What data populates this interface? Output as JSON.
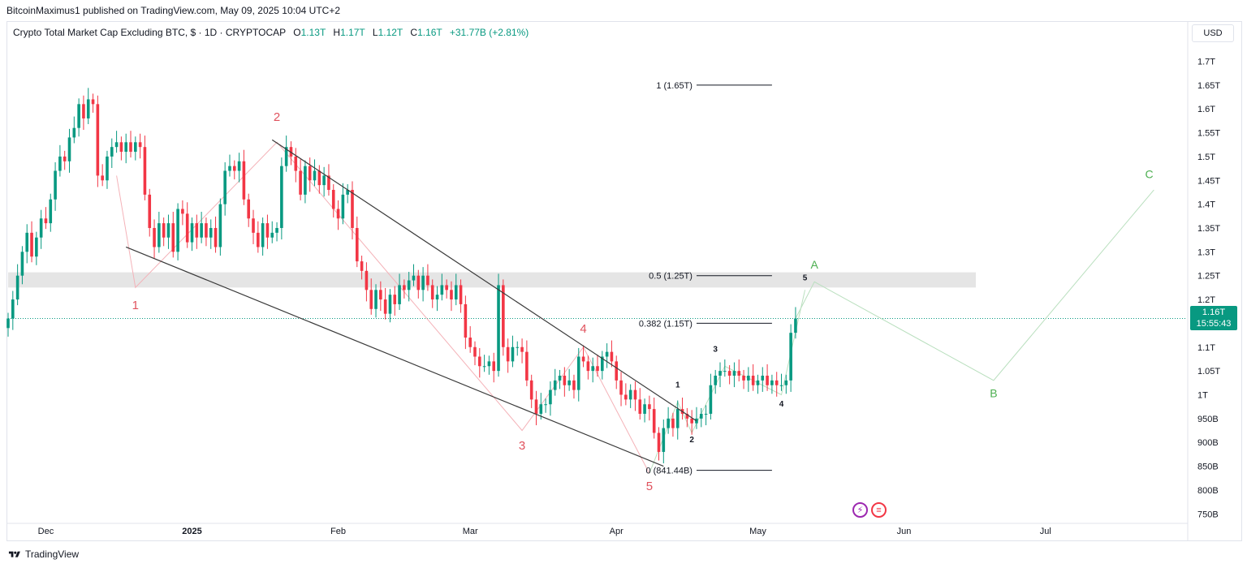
{
  "header": {
    "publisher": "BitcoinMaximus1 published on TradingView.com, May 09, 2025 10:04 UTC+2"
  },
  "legend": {
    "symbol": "Crypto Total Market Cap Excluding BTC, $ · 1D · CRYPTOCAP",
    "open_label": "O",
    "open": "1.13T",
    "high_label": "H",
    "high": "1.17T",
    "low_label": "L",
    "low": "1.12T",
    "close_label": "C",
    "close": "1.16T",
    "change": "+31.77B (+2.81%)"
  },
  "currency": "USD",
  "price_badge": {
    "price": "1.16T",
    "countdown": "15:55:43"
  },
  "footer": {
    "brand": "TradingView"
  },
  "colors": {
    "up": "#089981",
    "down": "#f23645",
    "wave_red": "#e0525d",
    "wave_green": "#4caf50"
  },
  "chart_data": {
    "type": "candlestick",
    "y_unit": "USD (trillions)",
    "ylim": [
      0.73,
      1.74
    ],
    "y_ticks": [
      {
        "v": 1.7,
        "label": "1.7T"
      },
      {
        "v": 1.65,
        "label": "1.65T"
      },
      {
        "v": 1.6,
        "label": "1.6T"
      },
      {
        "v": 1.55,
        "label": "1.55T"
      },
      {
        "v": 1.5,
        "label": "1.5T"
      },
      {
        "v": 1.45,
        "label": "1.45T"
      },
      {
        "v": 1.4,
        "label": "1.4T"
      },
      {
        "v": 1.35,
        "label": "1.35T"
      },
      {
        "v": 1.3,
        "label": "1.3T"
      },
      {
        "v": 1.25,
        "label": "1.25T"
      },
      {
        "v": 1.2,
        "label": "1.2T"
      },
      {
        "v": 1.1,
        "label": "1.1T"
      },
      {
        "v": 1.05,
        "label": "1.05T"
      },
      {
        "v": 1.0,
        "label": "1T"
      },
      {
        "v": 0.95,
        "label": "950B"
      },
      {
        "v": 0.9,
        "label": "900B"
      },
      {
        "v": 0.85,
        "label": "850B"
      },
      {
        "v": 0.8,
        "label": "800B"
      },
      {
        "v": 0.75,
        "label": "750B"
      }
    ],
    "x_ticks": [
      {
        "date": "2024-12-01",
        "label": "Dec",
        "bold": false
      },
      {
        "date": "2025-01-01",
        "label": "2025",
        "bold": true
      },
      {
        "date": "2025-02-01",
        "label": "Feb",
        "bold": false
      },
      {
        "date": "2025-03-01",
        "label": "Mar",
        "bold": false
      },
      {
        "date": "2025-04-01",
        "label": "Apr",
        "bold": false
      },
      {
        "date": "2025-05-01",
        "label": "May",
        "bold": false
      },
      {
        "date": "2025-06-01",
        "label": "Jun",
        "bold": false
      },
      {
        "date": "2025-07-01",
        "label": "Jul",
        "bold": false
      }
    ],
    "xlim": [
      "2024-11-23",
      "2025-07-31"
    ],
    "candles_close": [
      [
        "2024-11-23",
        1.16
      ],
      [
        "2024-11-24",
        1.2
      ],
      [
        "2024-11-25",
        1.25
      ],
      [
        "2024-11-26",
        1.3
      ],
      [
        "2024-11-27",
        1.34
      ],
      [
        "2024-11-28",
        1.29
      ],
      [
        "2024-11-29",
        1.33
      ],
      [
        "2024-11-30",
        1.37
      ],
      [
        "2024-12-01",
        1.36
      ],
      [
        "2024-12-02",
        1.41
      ],
      [
        "2024-12-03",
        1.47
      ],
      [
        "2024-12-04",
        1.5
      ],
      [
        "2024-12-05",
        1.49
      ],
      [
        "2024-12-06",
        1.54
      ],
      [
        "2024-12-07",
        1.56
      ],
      [
        "2024-12-08",
        1.61
      ],
      [
        "2024-12-09",
        1.58
      ],
      [
        "2024-12-10",
        1.62
      ],
      [
        "2024-12-11",
        1.61
      ],
      [
        "2024-12-12",
        1.46
      ],
      [
        "2024-12-13",
        1.45
      ],
      [
        "2024-12-14",
        1.5
      ],
      [
        "2024-12-15",
        1.52
      ],
      [
        "2024-12-16",
        1.53
      ],
      [
        "2024-12-17",
        1.51
      ],
      [
        "2024-12-18",
        1.53
      ],
      [
        "2024-12-19",
        1.51
      ],
      [
        "2024-12-20",
        1.53
      ],
      [
        "2024-12-21",
        1.52
      ],
      [
        "2024-12-22",
        1.42
      ],
      [
        "2024-12-23",
        1.35
      ],
      [
        "2024-12-24",
        1.31
      ],
      [
        "2024-12-25",
        1.36
      ],
      [
        "2024-12-26",
        1.33
      ],
      [
        "2024-12-27",
        1.36
      ],
      [
        "2024-12-28",
        1.3
      ],
      [
        "2024-12-29",
        1.39
      ],
      [
        "2024-12-30",
        1.38
      ],
      [
        "2024-12-31",
        1.32
      ],
      [
        "2025-01-01",
        1.36
      ],
      [
        "2025-01-02",
        1.33
      ],
      [
        "2025-01-03",
        1.36
      ],
      [
        "2025-01-04",
        1.33
      ],
      [
        "2025-01-05",
        1.35
      ],
      [
        "2025-01-06",
        1.31
      ],
      [
        "2025-01-07",
        1.4
      ],
      [
        "2025-01-08",
        1.47
      ],
      [
        "2025-01-09",
        1.48
      ],
      [
        "2025-01-10",
        1.47
      ],
      [
        "2025-01-11",
        1.49
      ],
      [
        "2025-01-12",
        1.41
      ],
      [
        "2025-01-13",
        1.37
      ],
      [
        "2025-01-14",
        1.34
      ],
      [
        "2025-01-15",
        1.31
      ],
      [
        "2025-01-16",
        1.36
      ],
      [
        "2025-01-17",
        1.33
      ],
      [
        "2025-01-18",
        1.34
      ],
      [
        "2025-01-19",
        1.35
      ],
      [
        "2025-01-20",
        1.48
      ],
      [
        "2025-01-21",
        1.52
      ],
      [
        "2025-01-22",
        1.5
      ],
      [
        "2025-01-23",
        1.47
      ],
      [
        "2025-01-24",
        1.42
      ],
      [
        "2025-01-25",
        1.48
      ],
      [
        "2025-01-26",
        1.45
      ],
      [
        "2025-01-27",
        1.47
      ],
      [
        "2025-01-28",
        1.44
      ],
      [
        "2025-01-29",
        1.46
      ],
      [
        "2025-01-30",
        1.43
      ],
      [
        "2025-01-31",
        1.39
      ],
      [
        "2025-02-01",
        1.37
      ],
      [
        "2025-02-02",
        1.42
      ],
      [
        "2025-02-03",
        1.43
      ],
      [
        "2025-02-04",
        1.35
      ],
      [
        "2025-02-05",
        1.28
      ],
      [
        "2025-02-06",
        1.26
      ],
      [
        "2025-02-07",
        1.22
      ],
      [
        "2025-02-08",
        1.18
      ],
      [
        "2025-02-09",
        1.22
      ],
      [
        "2025-02-10",
        1.2
      ],
      [
        "2025-02-11",
        1.17
      ],
      [
        "2025-02-12",
        1.21
      ],
      [
        "2025-02-13",
        1.19
      ],
      [
        "2025-02-14",
        1.23
      ],
      [
        "2025-02-15",
        1.22
      ],
      [
        "2025-02-16",
        1.24
      ],
      [
        "2025-02-17",
        1.25
      ],
      [
        "2025-02-18",
        1.22
      ],
      [
        "2025-02-19",
        1.25
      ],
      [
        "2025-02-20",
        1.23
      ],
      [
        "2025-02-21",
        1.2
      ],
      [
        "2025-02-22",
        1.21
      ],
      [
        "2025-02-23",
        1.23
      ],
      [
        "2025-02-24",
        1.22
      ],
      [
        "2025-02-25",
        1.2
      ],
      [
        "2025-02-26",
        1.23
      ],
      [
        "2025-02-27",
        1.19
      ],
      [
        "2025-02-28",
        1.12
      ],
      [
        "2025-03-01",
        1.1
      ],
      [
        "2025-03-02",
        1.08
      ],
      [
        "2025-03-03",
        1.06
      ],
      [
        "2025-03-04",
        1.06
      ],
      [
        "2025-03-05",
        1.07
      ],
      [
        "2025-03-06",
        1.05
      ],
      [
        "2025-03-07",
        1.23
      ],
      [
        "2025-03-08",
        1.1
      ],
      [
        "2025-03-09",
        1.07
      ],
      [
        "2025-03-10",
        1.1
      ],
      [
        "2025-03-11",
        1.1
      ],
      [
        "2025-03-12",
        1.09
      ],
      [
        "2025-03-13",
        1.03
      ],
      [
        "2025-03-14",
        0.99
      ],
      [
        "2025-03-15",
        0.96
      ],
      [
        "2025-03-16",
        0.98
      ],
      [
        "2025-03-17",
        0.98
      ],
      [
        "2025-03-18",
        1.01
      ],
      [
        "2025-03-19",
        1.03
      ],
      [
        "2025-03-20",
        1.04
      ],
      [
        "2025-03-21",
        1.02
      ],
      [
        "2025-03-22",
        1.03
      ],
      [
        "2025-03-23",
        1.01
      ],
      [
        "2025-03-24",
        1.08
      ],
      [
        "2025-03-25",
        1.07
      ],
      [
        "2025-03-26",
        1.05
      ],
      [
        "2025-03-27",
        1.06
      ],
      [
        "2025-03-28",
        1.05
      ],
      [
        "2025-03-29",
        1.08
      ],
      [
        "2025-03-30",
        1.09
      ],
      [
        "2025-03-31",
        1.07
      ],
      [
        "2025-04-01",
        1.03
      ],
      [
        "2025-04-02",
        1.0
      ],
      [
        "2025-04-03",
        0.99
      ],
      [
        "2025-04-04",
        1.01
      ],
      [
        "2025-04-05",
        0.99
      ],
      [
        "2025-04-06",
        0.96
      ],
      [
        "2025-04-07",
        0.98
      ],
      [
        "2025-04-08",
        0.97
      ],
      [
        "2025-04-09",
        0.92
      ],
      [
        "2025-04-10",
        0.88
      ],
      [
        "2025-04-11",
        0.93
      ],
      [
        "2025-04-12",
        0.95
      ],
      [
        "2025-04-13",
        0.93
      ],
      [
        "2025-04-14",
        0.97
      ],
      [
        "2025-04-15",
        0.96
      ],
      [
        "2025-04-16",
        0.95
      ],
      [
        "2025-04-17",
        0.94
      ],
      [
        "2025-04-18",
        0.95
      ],
      [
        "2025-04-19",
        0.96
      ],
      [
        "2025-04-20",
        0.96
      ],
      [
        "2025-04-21",
        1.02
      ],
      [
        "2025-04-22",
        1.04
      ],
      [
        "2025-04-23",
        1.05
      ],
      [
        "2025-04-24",
        1.05
      ],
      [
        "2025-04-25",
        1.04
      ],
      [
        "2025-04-26",
        1.05
      ],
      [
        "2025-04-27",
        1.04
      ],
      [
        "2025-04-28",
        1.03
      ],
      [
        "2025-04-29",
        1.04
      ],
      [
        "2025-04-30",
        1.02
      ],
      [
        "2025-05-01",
        1.03
      ],
      [
        "2025-05-02",
        1.04
      ],
      [
        "2025-05-03",
        1.02
      ],
      [
        "2025-05-04",
        1.03
      ],
      [
        "2025-05-05",
        1.02
      ],
      [
        "2025-05-06",
        1.02
      ],
      [
        "2025-05-07",
        1.03
      ],
      [
        "2025-05-08",
        1.13
      ],
      [
        "2025-05-09",
        1.16
      ]
    ],
    "support_zone": {
      "ylim": [
        1.225,
        1.257
      ]
    },
    "current_price_line": 1.16,
    "fib_levels": [
      {
        "v": 1.65,
        "label": "1 (1.65T)"
      },
      {
        "v": 1.25,
        "label": "0.5 (1.25T)"
      },
      {
        "v": 1.15,
        "label": "0.382 (1.15T)"
      },
      {
        "v": 0.8414,
        "label": "0 (841.44B)"
      }
    ],
    "fib_line_dates": [
      "2025-04-18",
      "2025-05-04"
    ],
    "trendlines": [
      {
        "from": [
          "2024-12-18",
          1.31
        ],
        "to": [
          "2025-04-11",
          0.85
        ]
      },
      {
        "from": [
          "2025-01-18",
          1.535
        ],
        "to": [
          "2025-04-18",
          0.945
        ]
      }
    ],
    "primary_wave_path": [
      [
        "2024-12-16",
        1.46
      ],
      [
        "2024-12-20",
        1.225
      ],
      [
        "2025-01-19",
        1.53
      ],
      [
        "2025-03-12",
        0.925
      ],
      [
        "2025-03-25",
        1.1
      ],
      [
        "2025-04-08",
        0.835
      ]
    ],
    "primary_wave_labels": [
      {
        "label": "1",
        "date": "2024-12-20",
        "v": 1.18
      },
      {
        "label": "2",
        "date": "2025-01-19",
        "v": 1.575
      },
      {
        "label": "3",
        "date": "2025-03-12",
        "v": 0.885
      },
      {
        "label": "4",
        "date": "2025-03-25",
        "v": 1.13
      },
      {
        "label": "5",
        "date": "2025-04-08",
        "v": 0.8
      }
    ],
    "minor_wave_path": [
      [
        "2025-04-08",
        0.835
      ],
      [
        "2025-04-14",
        0.985
      ],
      [
        "2025-04-17",
        0.92
      ],
      [
        "2025-04-24",
        1.06
      ],
      [
        "2025-05-06",
        1.0
      ],
      [
        "2025-05-11",
        1.22
      ]
    ],
    "minor_wave_labels": [
      {
        "label": "1",
        "date": "2025-04-14",
        "v": 1.015
      },
      {
        "label": "2",
        "date": "2025-04-17",
        "v": 0.9
      },
      {
        "label": "3",
        "date": "2025-04-22",
        "v": 1.09
      },
      {
        "label": "4",
        "date": "2025-05-06",
        "v": 0.975
      },
      {
        "label": "5",
        "date": "2025-05-11",
        "v": 1.24
      }
    ],
    "projection_path": [
      [
        "2025-05-09",
        1.16
      ],
      [
        "2025-05-13",
        1.237
      ],
      [
        "2025-06-20",
        1.03
      ],
      [
        "2025-07-24",
        1.43
      ]
    ],
    "projection_labels": [
      {
        "label": "A",
        "date": "2025-05-13",
        "v": 1.265
      },
      {
        "label": "B",
        "date": "2025-06-20",
        "v": 0.995
      },
      {
        "label": "C",
        "date": "2025-07-23",
        "v": 1.455
      }
    ]
  }
}
